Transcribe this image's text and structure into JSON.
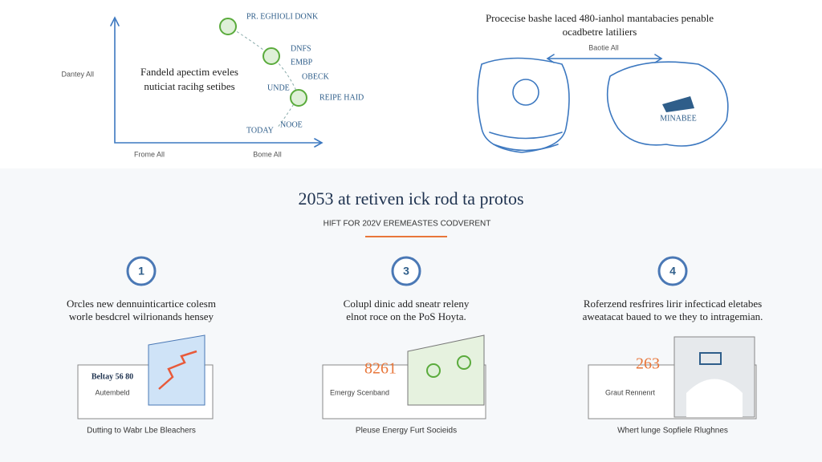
{
  "top_left": {
    "y_label": "Dantey All",
    "heading": [
      "Fandeld apectim eveles",
      "nuticiat racihg setibes"
    ],
    "labels": [
      "PR. EGHIOLI DONK",
      "DNFS",
      "EMBP",
      "OBECK",
      "UNDE",
      "REIPE HAID",
      "TODAY",
      "NOOE"
    ],
    "x_labels": [
      "Frome All",
      "Bome All"
    ]
  },
  "top_right": {
    "heading": [
      "Procecise bashe laced 480-ianhol mantabacies penable",
      "ocadbetre latiliers"
    ],
    "arrow_label": "Baotie All",
    "map_label": "MINABEE"
  },
  "section": {
    "title": "2053 at retiven ick rod ta protos",
    "subtitle": "HIFT FOR 202V EREMEASTES CODVERENT"
  },
  "steps": [
    {
      "number": "1",
      "text": [
        "Orcles new dennuinticartice colesm",
        "worle besdcrel wilrionands hensey"
      ],
      "card_value": "Beltay 56 80",
      "card_label": "Autembeld",
      "caption": "Dutting to Wabr Lbe Bleachers"
    },
    {
      "number": "3",
      "text": [
        "Colupl dinic add sneatr releny",
        "elnot roce on the PoS Hoyta."
      ],
      "card_value": "8261",
      "card_label": "Emergy Scenband",
      "caption": "Pleuse Energy Furt Socieids"
    },
    {
      "number": "4",
      "text": [
        "Roferzend resfrires lirir infecticad eletabes",
        "aweatacat baued to we they to intragemian."
      ],
      "card_value": "263",
      "card_label": "Graut Rennenrt",
      "caption": "Whert lunge Sopfiele Rlughnes"
    }
  ]
}
